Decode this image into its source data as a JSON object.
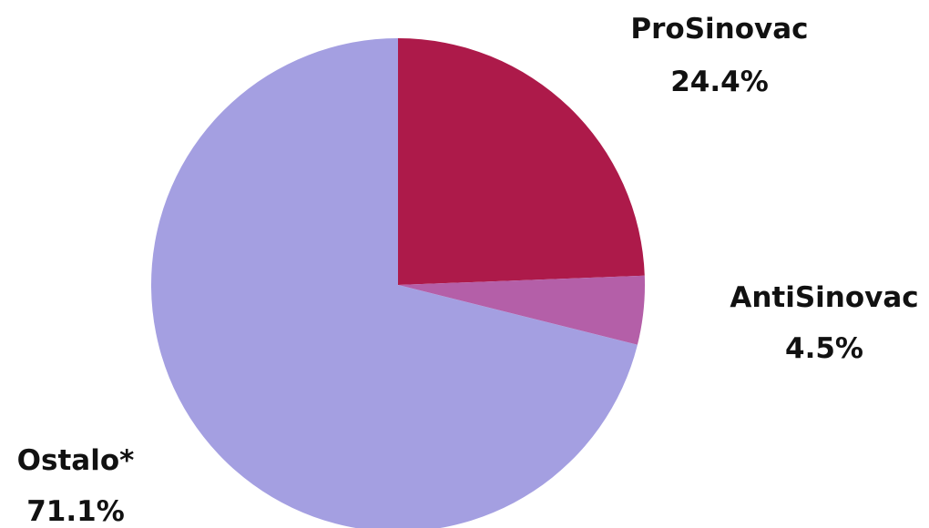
{
  "chart_data": {
    "type": "pie",
    "title": "",
    "slices": [
      {
        "name": "ProSinovac",
        "value": 24.4,
        "value_label": "24.4%",
        "color": "#AD1A4A"
      },
      {
        "name": "AntiSinovac",
        "value": 4.5,
        "value_label": "4.5%",
        "color": "#B45FA8"
      },
      {
        "name": "Ostalo*",
        "value": 71.1,
        "value_label": "71.1%",
        "color": "#A49FE1"
      }
    ],
    "start_angle": "12 o'clock",
    "direction": "clockwise",
    "legend": "none (labels placed next to slices)"
  }
}
